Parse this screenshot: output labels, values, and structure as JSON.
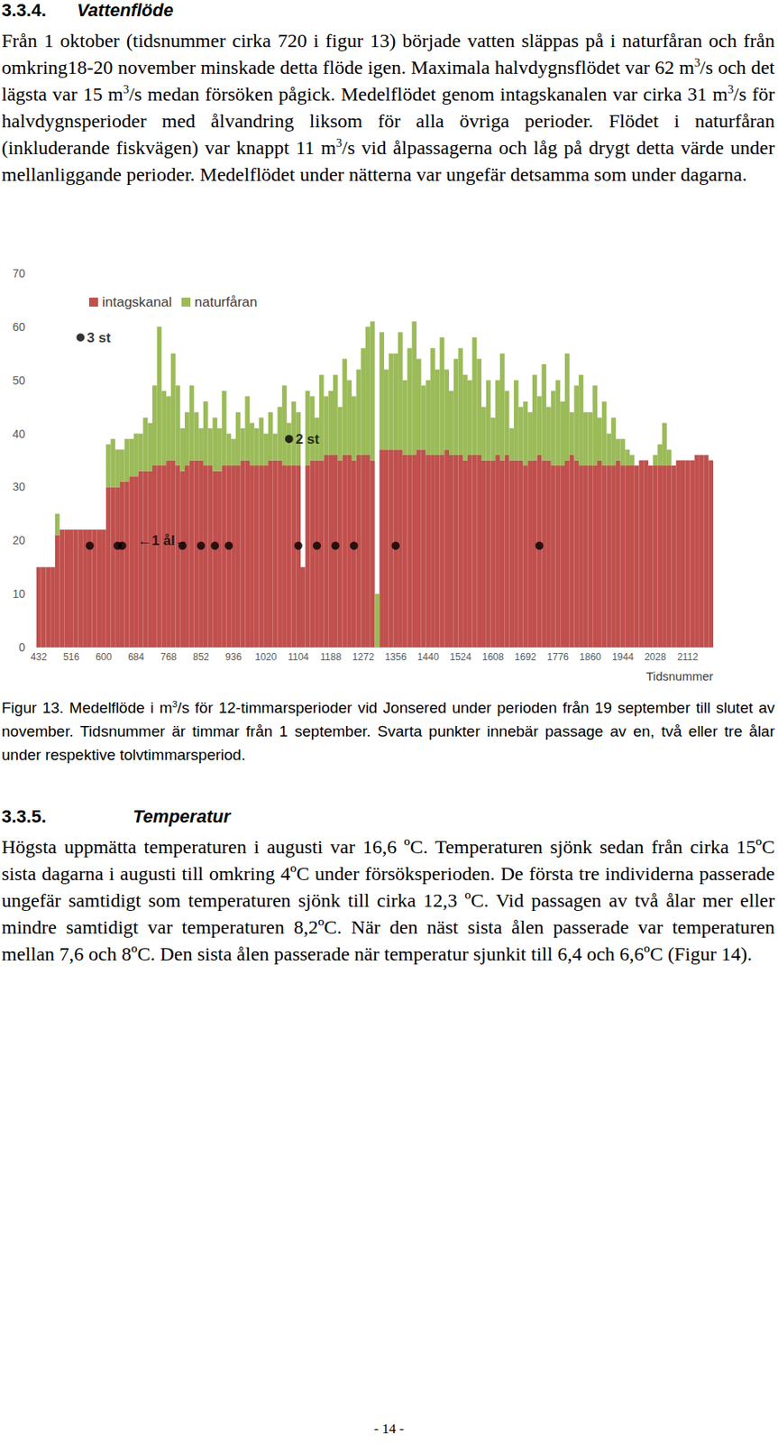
{
  "document": {
    "sections": [
      {
        "number": "3.3.4.",
        "title": "Vattenflöde",
        "paragraph": [
          "Från 1 oktober (tidsnummer cirka 720 i figur 13) började vatten släppas på i naturfåran och från omkring18-20 november minskade detta flöde igen. Maximala halvdygnsflödet var 62 m",
          {
            "sup": "3"
          },
          "/s och det lägsta var 15 m",
          {
            "sup": "3"
          },
          "/s medan försöken pågick. Medelflödet genom intagskanalen var cirka 31 m",
          {
            "sup": "3"
          },
          "/s för halvdygnsperioder med ålvandring liksom för alla övriga perioder. Flödet i naturfåran (inkluderande fiskvägen) var knappt 11 m",
          {
            "sup": "3"
          },
          "/s vid ålpassagerna och låg på drygt detta värde under mellanliggande perioder. Medelflödet under nätterna var ungefär detsamma som under dagarna."
        ]
      },
      {
        "number": "3.3.5.",
        "title": "Temperatur",
        "paragraph": [
          "Högsta uppmätta temperaturen i augusti var 16,6 ºC. Temperaturen sjönk sedan från cirka 15ºC sista dagarna i augusti till omkring 4ºC under försöksperioden. De första tre individerna passerade ungefär samtidigt som temperaturen sjönk till cirka 12,3 ºC. Vid passagen av två ålar mer eller mindre samtidigt var temperaturen 8,2ºC. När den näst sista ålen passerade var temperaturen mellan 7,6 och 8ºC. Den sista ålen passerade när temperatur sjunkit till 6,4 och 6,6ºC (Figur 14)."
        ]
      }
    ],
    "figure_caption": [
      "Figur 13. Medelflöde i m",
      {
        "sup": "3"
      },
      "/s för 12-timmarsperioder vid Jonsered under perioden från 19 september till slutet av november. Tidsnummer är timmar från 1 september. Svarta punkter innebär passage av en, två eller tre ålar under respektive tolvtimmarsperiod."
    ],
    "page_number": "- 14 -"
  },
  "chart_data": {
    "type": "bar",
    "stacked": true,
    "grid": false,
    "legend": "top-left",
    "x_label": "Tidsnummer",
    "categories": [
      432,
      null,
      null,
      null,
      null,
      null,
      null,
      516,
      null,
      null,
      null,
      null,
      null,
      null,
      600,
      null,
      null,
      null,
      null,
      null,
      null,
      684,
      null,
      null,
      null,
      null,
      null,
      null,
      768,
      null,
      null,
      null,
      null,
      null,
      null,
      852,
      null,
      null,
      null,
      null,
      null,
      null,
      936,
      null,
      null,
      null,
      null,
      null,
      null,
      1020,
      null,
      null,
      null,
      null,
      null,
      null,
      1104,
      null,
      null,
      null,
      null,
      null,
      null,
      1188,
      null,
      null,
      null,
      null,
      null,
      null,
      1272,
      null,
      null,
      null,
      null,
      null,
      null,
      1356,
      null,
      null,
      null,
      null,
      null,
      null,
      1440,
      null,
      null,
      null,
      null,
      null,
      null,
      1524,
      null,
      null,
      null,
      null,
      null,
      null,
      1608,
      null,
      null,
      null,
      null,
      null,
      null,
      1692,
      null,
      null,
      null,
      null,
      null,
      null,
      1776,
      null,
      null,
      null,
      null,
      null,
      null,
      1860,
      null,
      null,
      null,
      null,
      null,
      null,
      1944,
      null,
      null,
      null,
      null,
      null,
      null,
      2028,
      null,
      null,
      null,
      null,
      null,
      null,
      2112,
      null,
      null,
      null,
      null,
      null
    ],
    "ylim": [
      0,
      70
    ],
    "yticks": [
      0,
      10,
      20,
      30,
      40,
      50,
      60,
      70
    ],
    "series": [
      {
        "name": "intagskanal",
        "type": "bar",
        "color": "#c0504d",
        "values": [
          15,
          15,
          15,
          15,
          21,
          22,
          22,
          22,
          22,
          22,
          22,
          22,
          22,
          22,
          22,
          30,
          30,
          30,
          31,
          31,
          32,
          32,
          33,
          33,
          33,
          34,
          34,
          34,
          35,
          35,
          34,
          33,
          34,
          35,
          35,
          35,
          34,
          34,
          33,
          33,
          34,
          34,
          34,
          34,
          35,
          35,
          34,
          34,
          34,
          34,
          35,
          35,
          35,
          34,
          34,
          34,
          34,
          15,
          34,
          35,
          35,
          35,
          36,
          36,
          36,
          35,
          36,
          36,
          35,
          36,
          36,
          36,
          35,
          0,
          37,
          37,
          37,
          37,
          37,
          36,
          36,
          36,
          37,
          37,
          36,
          36,
          36,
          36,
          37,
          36,
          36,
          36,
          35,
          36,
          36,
          36,
          35,
          35,
          35,
          36,
          35,
          36,
          35,
          35,
          35,
          34,
          35,
          35,
          36,
          35,
          35,
          34,
          34,
          34,
          35,
          36,
          35,
          34,
          34,
          34,
          34,
          35,
          34,
          34,
          34,
          35,
          34,
          34,
          34,
          34,
          35,
          35,
          34,
          34,
          34,
          34,
          34,
          34,
          35,
          35,
          35,
          35,
          36,
          36,
          36,
          35
        ]
      },
      {
        "name": "naturfåran",
        "type": "bar",
        "color": "#9bbb59",
        "values": [
          0,
          0,
          0,
          0,
          4,
          0,
          0,
          0,
          0,
          0,
          0,
          0,
          0,
          0,
          0,
          8,
          9,
          7,
          6,
          8,
          7,
          8,
          7,
          10,
          9,
          15,
          26,
          14,
          12,
          20,
          15,
          8,
          10,
          14,
          9,
          6,
          12,
          7,
          10,
          8,
          14,
          6,
          5,
          10,
          6,
          12,
          8,
          7,
          9,
          6,
          9,
          5,
          10,
          15,
          8,
          12,
          10,
          0,
          14,
          12,
          8,
          16,
          11,
          12,
          15,
          10,
          18,
          14,
          12,
          16,
          20,
          24,
          26,
          10,
          22,
          15,
          18,
          18,
          22,
          14,
          20,
          25,
          17,
          12,
          14,
          20,
          16,
          22,
          15,
          12,
          18,
          20,
          16,
          14,
          22,
          18,
          10,
          15,
          8,
          14,
          20,
          12,
          6,
          15,
          10,
          12,
          9,
          16,
          11,
          18,
          10,
          14,
          16,
          12,
          20,
          8,
          14,
          17,
          10,
          10,
          15,
          8,
          12,
          6,
          9,
          4,
          5,
          3,
          2,
          0,
          0,
          0,
          0,
          2,
          4,
          8,
          3,
          0,
          0,
          0,
          0,
          0,
          0,
          0,
          0,
          0
        ]
      },
      {
        "type": "scatter",
        "marker": "circle",
        "color": "#000000",
        "values": [
          null,
          null,
          null,
          null,
          null,
          null,
          null,
          null,
          null,
          58,
          null,
          19,
          null,
          null,
          null,
          null,
          null,
          19,
          19,
          null,
          null,
          null,
          null,
          null,
          null,
          null,
          null,
          null,
          null,
          null,
          null,
          19,
          null,
          null,
          null,
          19,
          null,
          null,
          19,
          null,
          null,
          19,
          null,
          null,
          null,
          null,
          null,
          null,
          null,
          null,
          null,
          null,
          null,
          null,
          39,
          null,
          19,
          null,
          null,
          null,
          19,
          null,
          null,
          null,
          19,
          null,
          null,
          null,
          19,
          null,
          null,
          null,
          null,
          null,
          null,
          null,
          null,
          19,
          null,
          null,
          null,
          null,
          null,
          null,
          null,
          null,
          null,
          null,
          null,
          null,
          null,
          null,
          null,
          null,
          null,
          null,
          null,
          null,
          null,
          null,
          null,
          null,
          null,
          null,
          null,
          null,
          null,
          null,
          19,
          null,
          null,
          null,
          null,
          null,
          null,
          null,
          null,
          null,
          null,
          null,
          null,
          null,
          null,
          null,
          null,
          null,
          null,
          null,
          null,
          null,
          null,
          null,
          null,
          null,
          null,
          null,
          null,
          null,
          null,
          null,
          null,
          null,
          null,
          null,
          null,
          null
        ]
      }
    ],
    "annotations": [
      {
        "text": "3 st",
        "point": 9,
        "y": 58
      },
      {
        "text": "2 st",
        "point": 54,
        "y": 39
      },
      {
        "text": "←1 ål→",
        "point": 20,
        "y": 20
      }
    ]
  }
}
